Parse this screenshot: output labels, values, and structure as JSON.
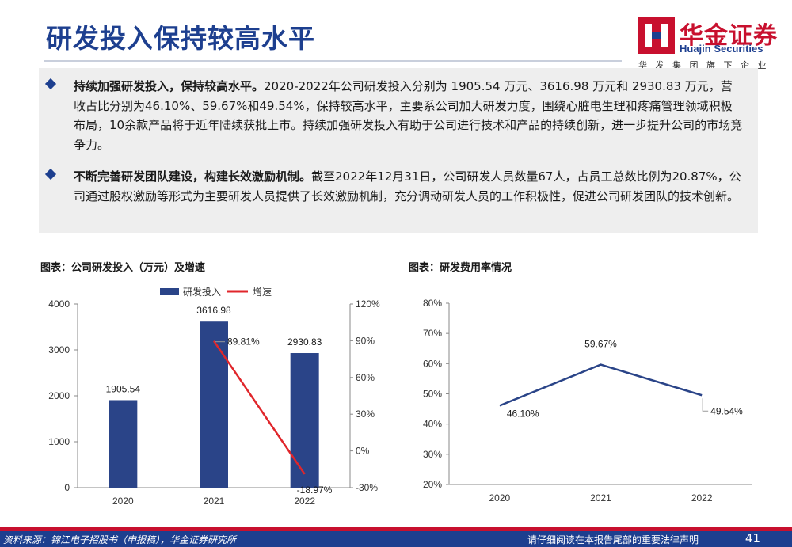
{
  "header": {
    "title": "研发投入保持较高水平",
    "logo_cn": "华金证券",
    "logo_en": "Huajin Securities",
    "logo_sub": "华发集团旗下企业"
  },
  "summary": {
    "bullets": [
      {
        "lead": "持续加强研发投入，保持较高水平。",
        "text": "2020-2022年公司研发投入分别为 1905.54 万元、3616.98 万元和 2930.83 万元，营收占比分别为46.10%、59.67%和49.54%，保持较高水平，主要系公司加大研发力度，围绕心脏电生理和疼痛管理领域积极布局，10余款产品将于近年陆续获批上市。持续加强研发投入有助于公司进行技术和产品的持续创新，进一步提升公司的市场竞争力。"
      },
      {
        "lead": "不断完善研发团队建设，构建长效激励机制。",
        "text": "截至2022年12月31日，公司研发人员数量67人，占员工总数比例为20.87%，公司通过股权激励等形式为主要研发人员提供了长效激励机制，充分调动研发人员的工作积极性，促进公司研发团队的技术创新。"
      }
    ]
  },
  "chart_data": [
    {
      "type": "bar",
      "title": "图表：公司研发投入（万元）及增速",
      "categories": [
        "2020",
        "2021",
        "2022"
      ],
      "series": [
        {
          "name": "研发投入",
          "type": "bar",
          "axis": "left",
          "values": [
            1905.54,
            3616.98,
            2930.83
          ],
          "labels": [
            "1905.54",
            "3616.98",
            "2930.83"
          ],
          "color": "#2a4488"
        },
        {
          "name": "增速",
          "type": "line",
          "axis": "right",
          "values": [
            null,
            89.81,
            -18.97
          ],
          "labels": [
            "",
            "89.81%",
            "-18.97%"
          ],
          "color": "#e0262b"
        }
      ],
      "ylim": [
        0,
        4000
      ],
      "yticks": [
        "0",
        "1000",
        "2000",
        "3000",
        "4000"
      ],
      "y2lim": [
        -30,
        120
      ],
      "y2ticks": [
        "-30%",
        "0%",
        "30%",
        "60%",
        "90%",
        "120%"
      ],
      "legend": "top"
    },
    {
      "type": "line",
      "title": "图表：研发费用率情况",
      "categories": [
        "2020",
        "2021",
        "2022"
      ],
      "series": [
        {
          "values": [
            46.1,
            59.67,
            49.54
          ],
          "labels": [
            "46.10%",
            "59.67%",
            "49.54%"
          ],
          "color": "#2a4488"
        }
      ],
      "ylim": [
        20,
        80
      ],
      "yticks": [
        "20%",
        "30%",
        "40%",
        "50%",
        "60%",
        "70%",
        "80%"
      ]
    }
  ],
  "footer": {
    "source": "资料来源：锦江电子招股书（申报稿），华金证券研究所",
    "disclaimer": "请仔细阅读在本报告尾部的重要法律声明",
    "page": "41"
  }
}
